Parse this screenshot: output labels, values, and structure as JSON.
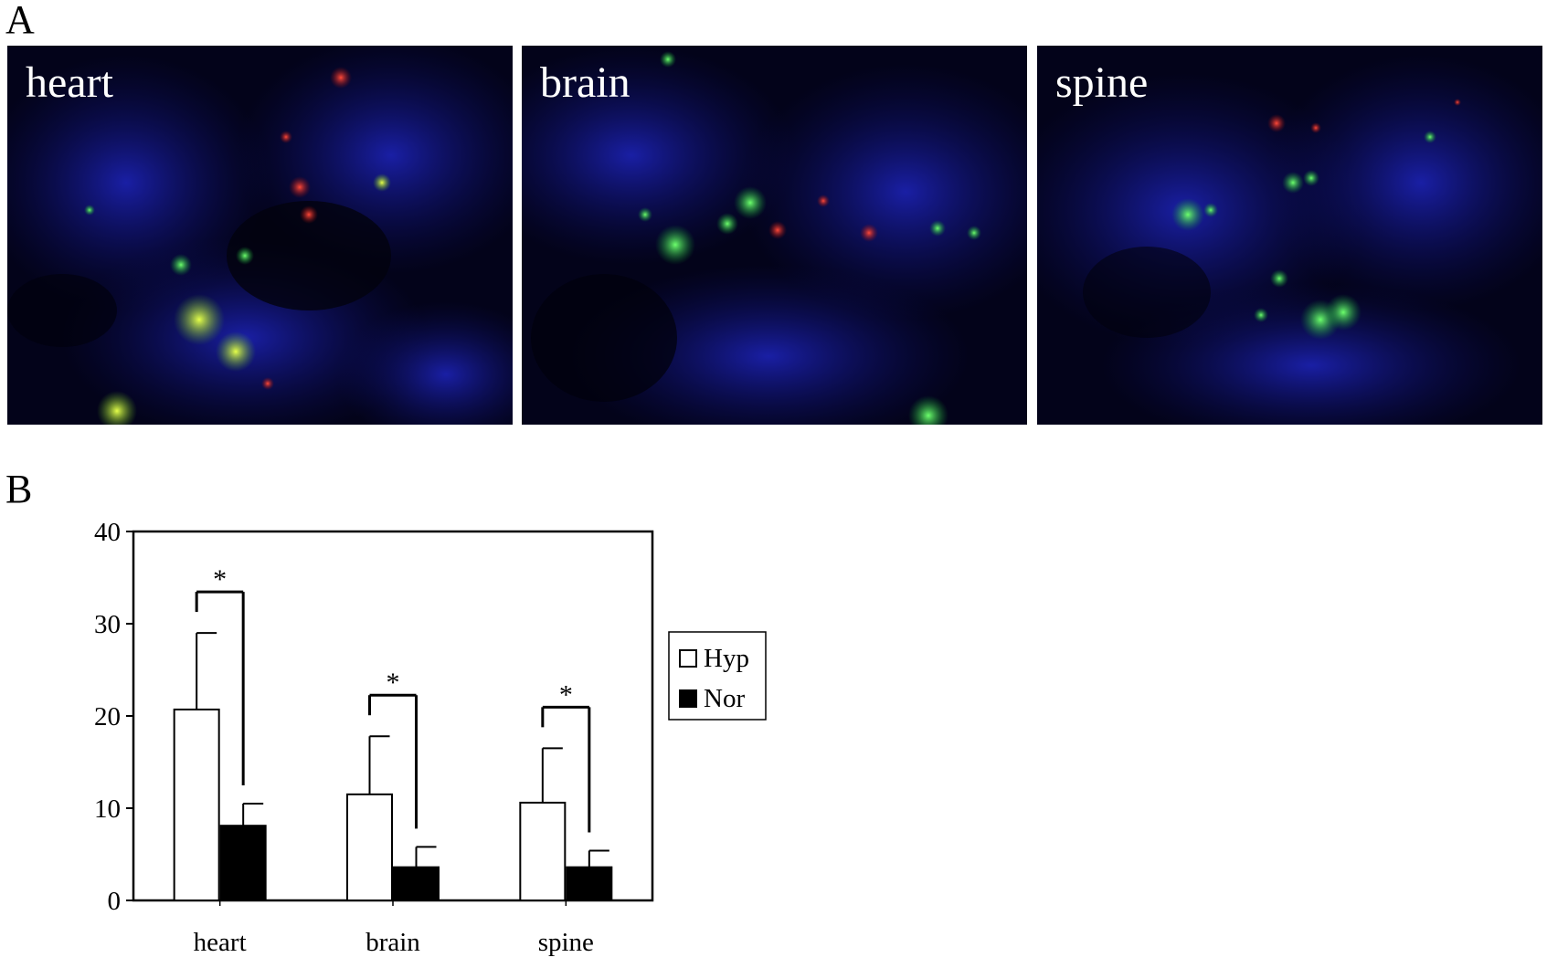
{
  "figure": {
    "panel_a_label": "A",
    "panel_b_label": "B"
  },
  "micrographs": [
    {
      "label": "heart",
      "dominant_colors": [
        "#0a0a6e",
        "#1fd23c",
        "#e8281e"
      ]
    },
    {
      "label": "brain",
      "dominant_colors": [
        "#0a0a6e",
        "#1fd23c",
        "#e8281e"
      ]
    },
    {
      "label": "spine",
      "dominant_colors": [
        "#0a0a6e",
        "#1fd23c",
        "#e8281e"
      ]
    }
  ],
  "chart_data": {
    "type": "bar",
    "categories": [
      "heart",
      "brain",
      "spine"
    ],
    "series": [
      {
        "name": "Hyp",
        "values": [
          20.7,
          11.5,
          10.6
        ],
        "errors": [
          8.3,
          6.3,
          5.9
        ],
        "color": "#ffffff"
      },
      {
        "name": "Nor",
        "values": [
          8.1,
          3.6,
          3.6
        ],
        "errors": [
          2.4,
          2.2,
          1.8
        ],
        "color": "#000000"
      }
    ],
    "ylim": [
      0,
      40
    ],
    "yticks": [
      "0",
      "10",
      "20",
      "30",
      "40"
    ],
    "significance": [
      {
        "category": "heart",
        "marker": "*"
      },
      {
        "category": "brain",
        "marker": "*"
      },
      {
        "category": "spine",
        "marker": "*"
      }
    ],
    "legend_position": "right",
    "grid": false
  }
}
